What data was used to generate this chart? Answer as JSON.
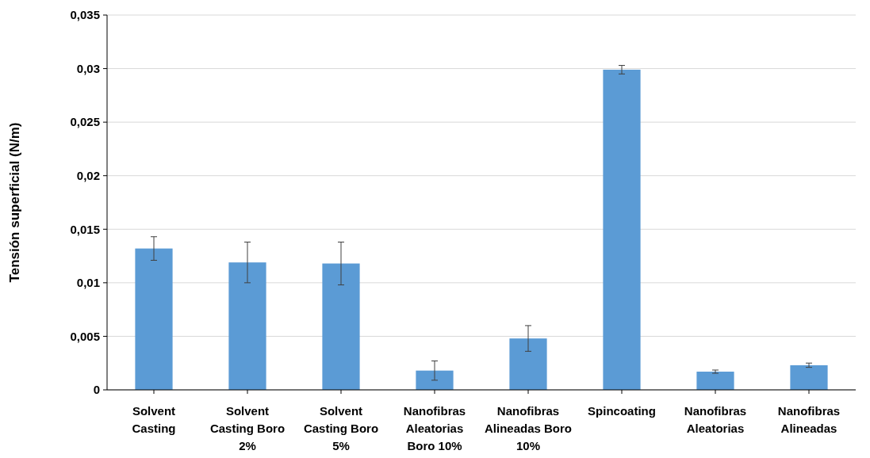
{
  "chart_data": {
    "type": "bar",
    "ylabel": "Tensión superficial (N/m)",
    "categories": [
      "Solvent Casting",
      "Solvent Casting Boro 2%",
      "Solvent Casting Boro 5%",
      "Nanofibras Aleatorias Boro 10%",
      "Nanofibras Alineadas Boro 10%",
      "Spincoating",
      "Nanofibras Aleatorias",
      "Nanofibras Alineadas"
    ],
    "values": [
      0.0132,
      0.0119,
      0.0118,
      0.0018,
      0.0048,
      0.0299,
      0.0017,
      0.0023
    ],
    "errors": [
      0.0011,
      0.0019,
      0.002,
      0.0009,
      0.0012,
      0.0004,
      0.00015,
      0.0002
    ],
    "color": "#5b9bd5",
    "ylim": [
      0,
      0.035
    ],
    "yticks": [
      {
        "value": 0,
        "label": "0"
      },
      {
        "value": 0.005,
        "label": "0,005"
      },
      {
        "value": 0.01,
        "label": "0,01"
      },
      {
        "value": 0.015,
        "label": "0,015"
      },
      {
        "value": 0.02,
        "label": "0,02"
      },
      {
        "value": 0.025,
        "label": "0,025"
      },
      {
        "value": 0.03,
        "label": "0,03"
      },
      {
        "value": 0.035,
        "label": "0,035"
      }
    ],
    "grid": "y"
  }
}
